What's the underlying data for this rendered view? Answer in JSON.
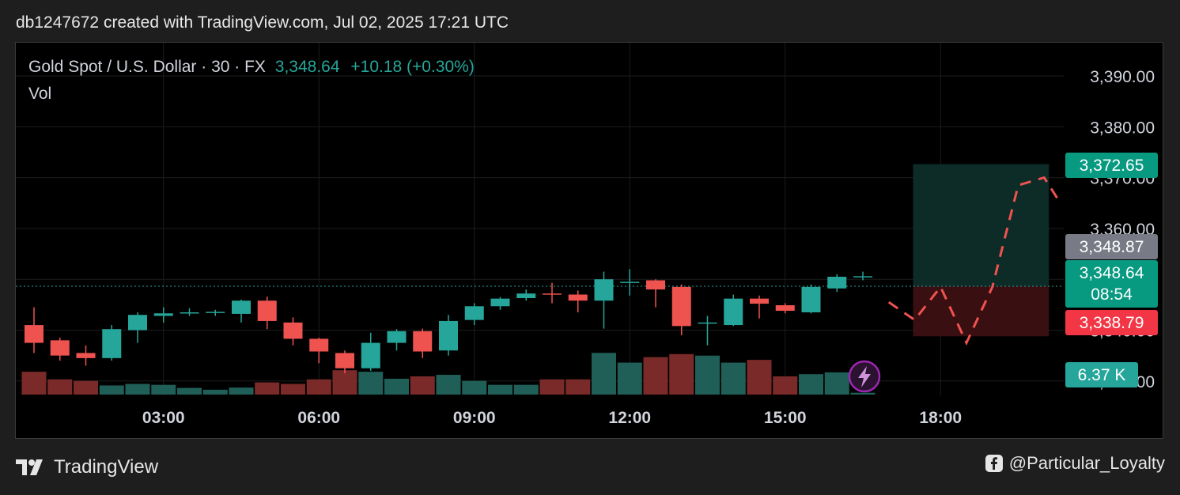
{
  "header": {
    "caption": "db1247672 created with TradingView.com, Jul 02, 2025 17:21 UTC"
  },
  "legend": {
    "symbol": "Gold Spot / U.S. Dollar · 30 · FX",
    "last": "3,348.64",
    "change": "+10.18 (+0.30%)",
    "volume_label": "Vol"
  },
  "footer": {
    "brand": "TradingView",
    "user": "@Particular_Loyalty"
  },
  "colors": {
    "up": "#26a69a",
    "down": "#ef5350",
    "up_vol": "#1f5f58",
    "down_vol": "#7a2a28",
    "grid": "#1c1c1c",
    "axis_text": "#d1d4dc",
    "tp_zone": "#0d2b27",
    "sl_zone": "#3a0f12",
    "projection": "#ef5350",
    "last_price_line": "#26a69a",
    "alert_icon": "#9c27b0"
  },
  "icons": {
    "brand": "tradingview-logo-icon",
    "social": "facebook-icon",
    "alert": "lightning-alert-icon"
  },
  "chart_data": {
    "type": "candlestick",
    "title": "Gold Spot / U.S. Dollar · 30 · FX",
    "interval": "30",
    "x_tick_labels": [
      "03:00",
      "06:00",
      "09:00",
      "12:00",
      "15:00",
      "18:00"
    ],
    "y_tick_labels": [
      "3,390.00",
      "3,380.00",
      "3,370.00",
      "3,360.00",
      "3,350.00",
      "3,340.00",
      "3,330.00"
    ],
    "ylim": [
      3328.5,
      3394.5
    ],
    "grid": true,
    "candles": [
      {
        "time": "00:30",
        "o": 3341.0,
        "h": 3344.5,
        "l": 3335.5,
        "c": 3337.5,
        "v": 7.5
      },
      {
        "time": "01:00",
        "o": 3338.0,
        "h": 3338.5,
        "l": 3334.0,
        "c": 3335.0,
        "v": 5.0
      },
      {
        "time": "01:30",
        "o": 3335.5,
        "h": 3337.0,
        "l": 3333.0,
        "c": 3334.5,
        "v": 4.5
      },
      {
        "time": "02:00",
        "o": 3334.5,
        "h": 3341.0,
        "l": 3334.0,
        "c": 3340.2,
        "v": 3.0
      },
      {
        "time": "02:30",
        "o": 3340.0,
        "h": 3343.5,
        "l": 3337.5,
        "c": 3343.0,
        "v": 3.5
      },
      {
        "time": "03:00",
        "o": 3342.8,
        "h": 3344.5,
        "l": 3341.5,
        "c": 3343.3,
        "v": 3.2
      },
      {
        "time": "03:30",
        "o": 3343.3,
        "h": 3344.3,
        "l": 3342.8,
        "c": 3343.5,
        "v": 2.2
      },
      {
        "time": "04:00",
        "o": 3343.5,
        "h": 3344.0,
        "l": 3342.8,
        "c": 3343.6,
        "v": 1.6
      },
      {
        "time": "04:30",
        "o": 3343.2,
        "h": 3346.0,
        "l": 3341.5,
        "c": 3345.8,
        "v": 2.3
      },
      {
        "time": "05:00",
        "o": 3345.8,
        "h": 3346.6,
        "l": 3340.2,
        "c": 3341.8,
        "v": 4.0
      },
      {
        "time": "05:30",
        "o": 3341.5,
        "h": 3342.5,
        "l": 3337.0,
        "c": 3338.3,
        "v": 3.5
      },
      {
        "time": "06:00",
        "o": 3338.3,
        "h": 3338.5,
        "l": 3333.5,
        "c": 3335.8,
        "v": 5.0
      },
      {
        "time": "06:30",
        "o": 3335.5,
        "h": 3336.0,
        "l": 3331.5,
        "c": 3332.5,
        "v": 8.0
      },
      {
        "time": "07:00",
        "o": 3332.5,
        "h": 3339.5,
        "l": 3332.0,
        "c": 3337.5,
        "v": 7.5
      },
      {
        "time": "07:30",
        "o": 3337.5,
        "h": 3340.2,
        "l": 3336.0,
        "c": 3339.8,
        "v": 5.2
      },
      {
        "time": "08:00",
        "o": 3339.8,
        "h": 3340.3,
        "l": 3334.5,
        "c": 3335.8,
        "v": 6.0
      },
      {
        "time": "08:30",
        "o": 3336.0,
        "h": 3343.0,
        "l": 3335.0,
        "c": 3341.8,
        "v": 6.5
      },
      {
        "time": "09:00",
        "o": 3342.0,
        "h": 3345.3,
        "l": 3341.0,
        "c": 3344.7,
        "v": 4.5
      },
      {
        "time": "09:30",
        "o": 3344.7,
        "h": 3346.5,
        "l": 3344.0,
        "c": 3346.2,
        "v": 3.2
      },
      {
        "time": "10:00",
        "o": 3346.3,
        "h": 3348.0,
        "l": 3345.8,
        "c": 3347.2,
        "v": 3.2
      },
      {
        "time": "10:30",
        "o": 3347.2,
        "h": 3349.3,
        "l": 3345.3,
        "c": 3347.0,
        "v": 5.0
      },
      {
        "time": "11:00",
        "o": 3347.0,
        "h": 3347.8,
        "l": 3343.5,
        "c": 3345.8,
        "v": 5.0
      },
      {
        "time": "11:30",
        "o": 3345.8,
        "h": 3351.5,
        "l": 3340.3,
        "c": 3350.0,
        "v": 13.7
      },
      {
        "time": "12:00",
        "o": 3349.5,
        "h": 3352.0,
        "l": 3346.8,
        "c": 3349.5,
        "v": 10.5
      },
      {
        "time": "12:30",
        "o": 3349.8,
        "h": 3350.0,
        "l": 3344.5,
        "c": 3348.0,
        "v": 12.3
      },
      {
        "time": "13:00",
        "o": 3348.5,
        "h": 3349.0,
        "l": 3339.0,
        "c": 3340.8,
        "v": 13.3
      },
      {
        "time": "13:30",
        "o": 3341.5,
        "h": 3342.8,
        "l": 3337.0,
        "c": 3341.5,
        "v": 12.8
      },
      {
        "time": "14:00",
        "o": 3341.0,
        "h": 3347.0,
        "l": 3340.8,
        "c": 3346.2,
        "v": 10.5
      },
      {
        "time": "14:30",
        "o": 3346.2,
        "h": 3346.8,
        "l": 3342.3,
        "c": 3345.2,
        "v": 11.4
      },
      {
        "time": "15:00",
        "o": 3344.9,
        "h": 3345.3,
        "l": 3343.3,
        "c": 3343.8,
        "v": 6.0
      },
      {
        "time": "15:30",
        "o": 3343.5,
        "h": 3349.0,
        "l": 3343.3,
        "c": 3348.5,
        "v": 6.7
      },
      {
        "time": "16:00",
        "o": 3348.2,
        "h": 3351.0,
        "l": 3347.5,
        "c": 3350.5,
        "v": 7.3
      },
      {
        "time": "16:30",
        "o": 3350.5,
        "h": 3351.5,
        "l": 3349.8,
        "c": 3350.6,
        "v": 0.6
      }
    ],
    "price_labels": [
      {
        "price": 3372.65,
        "text": "3,372.65",
        "color": "#089981"
      },
      {
        "price": 3348.87,
        "text": "3,348.87",
        "color": "#787b86"
      },
      {
        "price": 3348.64,
        "text": "3,348.64",
        "sub": "08:54",
        "color": "#089981"
      },
      {
        "price": 3338.79,
        "text": "3,338.79",
        "color": "#f23645"
      }
    ],
    "volume_label": {
      "text": "6.37 K",
      "color": "#26a69a"
    },
    "position": {
      "entry": 3348.64,
      "target": 3372.65,
      "stop": 3338.79,
      "start_time": "17:30",
      "end_time": "20:00"
    },
    "projection": [
      {
        "time": "17:00",
        "price": 3345.5
      },
      {
        "time": "17:30",
        "price": 3342.0
      },
      {
        "time": "18:00",
        "price": 3348.5
      },
      {
        "time": "18:30",
        "price": 3337.5
      },
      {
        "time": "19:00",
        "price": 3348.5
      },
      {
        "time": "19:30",
        "price": 3368.5
      },
      {
        "time": "20:00",
        "price": 3370.0
      },
      {
        "time": "20:15",
        "price": 3366.0
      }
    ]
  }
}
